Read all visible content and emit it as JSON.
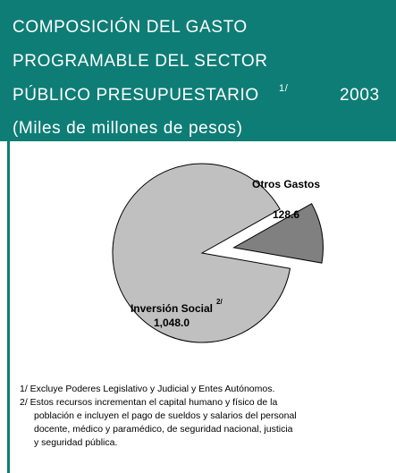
{
  "chart_data": {
    "type": "pie",
    "title_lines": [
      "COMPOSICIÓN DEL GASTO",
      "PROGRAMABLE DEL SECTOR",
      "PÚBLICO PRESUPUESTARIO"
    ],
    "title_note": "1/",
    "year": "2003",
    "subtitle": "(Miles de millones de pesos)",
    "categories": [
      "Otros Gastos",
      "Inversión Social"
    ],
    "category_notes": [
      null,
      "2/"
    ],
    "values": [
      128.6,
      1048.0
    ],
    "value_labels": [
      "128.6",
      "1,048.0"
    ],
    "colors": [
      "#808080",
      "#c0c0c0"
    ],
    "footnotes": [
      "1/ Excluye Poderes Legislativo y Judicial y Entes Autónomos.",
      "2/ Estos recursos incrementan el capital humano y físico de la",
      "población  e incluyen el pago de sueldos y salarios del personal",
      "docente, médico y paramédico, de seguridad nacional, justicia",
      "y seguridad pública."
    ]
  }
}
